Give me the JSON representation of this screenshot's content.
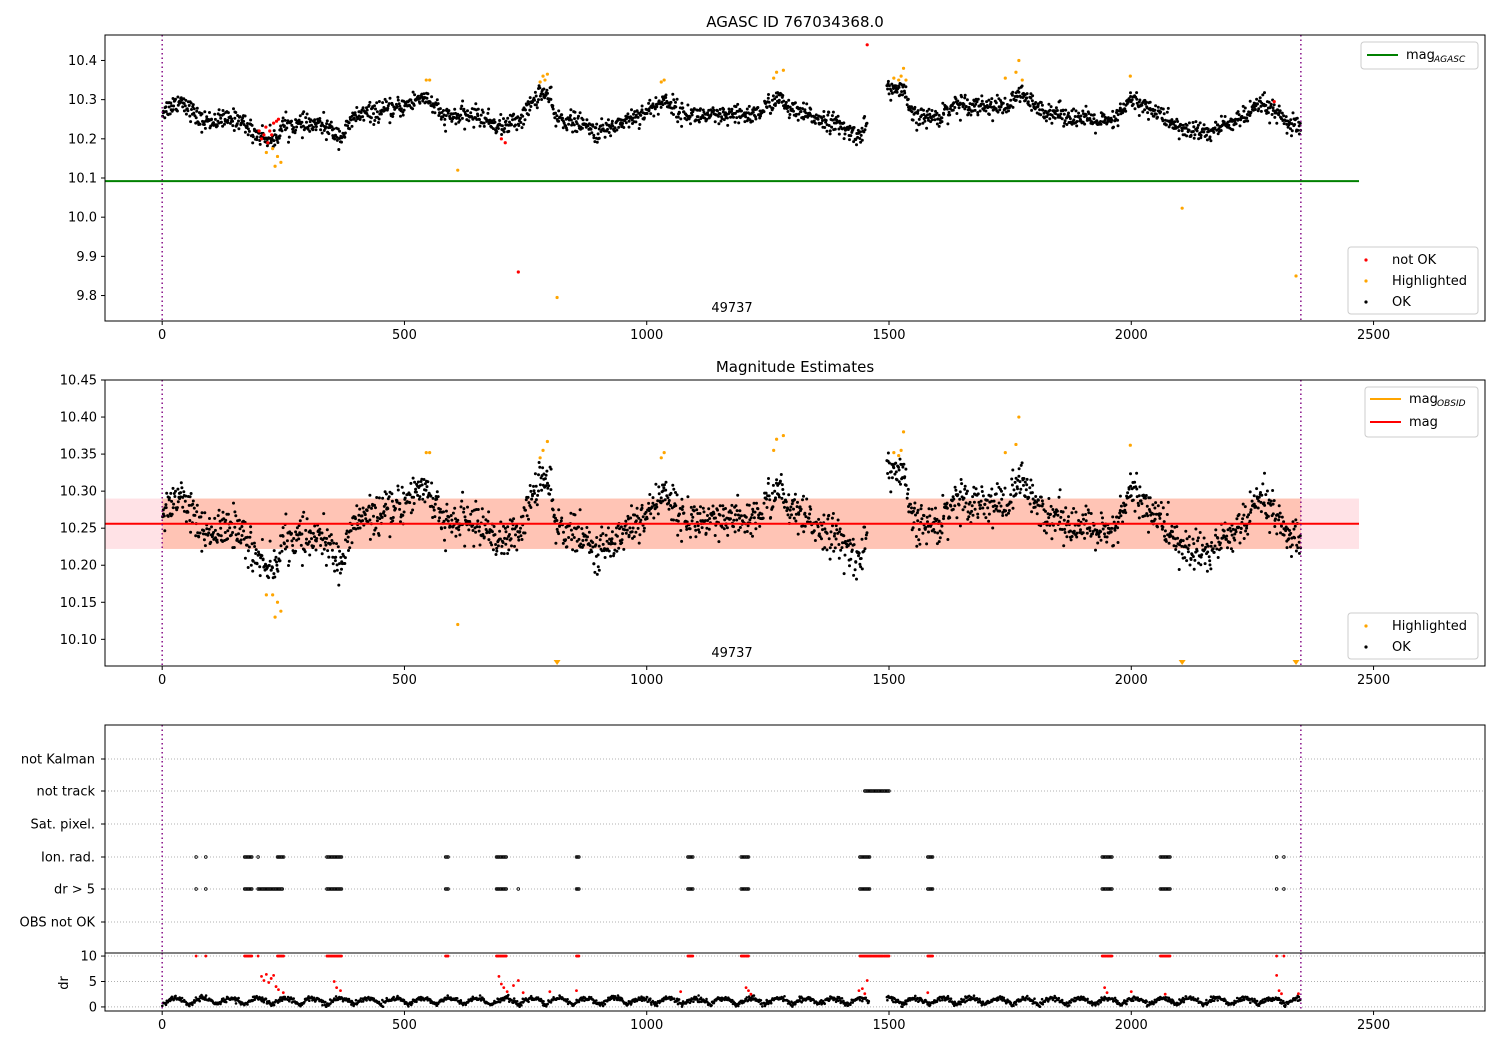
{
  "chart_data": [
    {
      "type": "scatter",
      "title": "AGASC ID 767034368.0",
      "xlabel": "",
      "ylabel": "",
      "xlim": [
        -118,
        2730
      ],
      "ylim": [
        9.735,
        10.465
      ],
      "x_ticks": [
        0,
        500,
        1000,
        1500,
        2000,
        2500
      ],
      "y_ticks": [
        9.8,
        9.9,
        10.0,
        10.1,
        10.2,
        10.3,
        10.4
      ],
      "annotation": "49737",
      "vlines": [
        0,
        2350
      ],
      "hline": {
        "name": "mag",
        "name_sub": "AGASC",
        "value": 10.092,
        "x_range": [
          -118,
          2470
        ],
        "color": "#008000"
      },
      "legend_lines": [
        {
          "label": "mag",
          "sub": "AGASC",
          "color": "#008000"
        }
      ],
      "legend_points": [
        {
          "label": "not OK",
          "color": "#ff0000"
        },
        {
          "label": "Highlighted",
          "color": "#ffa500"
        },
        {
          "label": "OK",
          "color": "#000000"
        }
      ],
      "legend_placement": "top-right / bottom-right",
      "grid": false,
      "series": [
        {
          "name": "not OK",
          "color": "#ff0000",
          "points": [
            [
              200,
              10.22
            ],
            [
              205,
              10.2
            ],
            [
              210,
              10.21
            ],
            [
              214,
              10.23
            ],
            [
              218,
              10.19
            ],
            [
              222,
              10.22
            ],
            [
              226,
              10.21
            ],
            [
              230,
              10.24
            ],
            [
              236,
              10.245
            ],
            [
              240,
              10.25
            ],
            [
              700,
              10.2
            ],
            [
              708,
              10.19
            ],
            [
              735,
              9.86
            ],
            [
              1455,
              10.44
            ],
            [
              2295,
              10.295
            ]
          ]
        },
        {
          "name": "Highlighted",
          "color": "#ffa500",
          "points": [
            [
              215,
              10.165
            ],
            [
              228,
              10.175
            ],
            [
              233,
              10.13
            ],
            [
              238,
              10.155
            ],
            [
              245,
              10.14
            ],
            [
              545,
              10.35
            ],
            [
              552,
              10.35
            ],
            [
              610,
              10.12
            ],
            [
              780,
              10.345
            ],
            [
              786,
              10.36
            ],
            [
              790,
              10.35
            ],
            [
              795,
              10.365
            ],
            [
              815,
              9.795
            ],
            [
              1030,
              10.345
            ],
            [
              1036,
              10.35
            ],
            [
              1262,
              10.355
            ],
            [
              1268,
              10.37
            ],
            [
              1282,
              10.375
            ],
            [
              1510,
              10.355
            ],
            [
              1520,
              10.35
            ],
            [
              1525,
              10.36
            ],
            [
              1530,
              10.38
            ],
            [
              1535,
              10.35
            ],
            [
              1740,
              10.355
            ],
            [
              1762,
              10.37
            ],
            [
              1768,
              10.4
            ],
            [
              1775,
              10.35
            ],
            [
              1998,
              10.36
            ],
            [
              2105,
              10.023
            ],
            [
              2340,
              9.85
            ]
          ]
        },
        {
          "name": "OK",
          "color": "#000000",
          "generator": {
            "n": 2100,
            "x_range": [
              0,
              2350
            ],
            "base": 10.255,
            "segments": [
              [
                0,
                10.27
              ],
              [
                40,
                10.3
              ],
              [
                80,
                10.245
              ],
              [
                160,
                10.25
              ],
              [
                190,
                10.215
              ],
              [
                230,
                10.195
              ],
              [
                250,
                10.235
              ],
              [
                330,
                10.235
              ],
              [
                370,
                10.205
              ],
              [
                400,
                10.26
              ],
              [
                480,
                10.275
              ],
              [
                510,
                10.29
              ],
              [
                540,
                10.31
              ],
              [
                560,
                10.285
              ],
              [
                580,
                10.255
              ],
              [
                650,
                10.26
              ],
              [
                700,
                10.23
              ],
              [
                740,
                10.25
              ],
              [
                780,
                10.32
              ],
              [
                800,
                10.305
              ],
              [
                810,
                10.255
              ],
              [
                860,
                10.24
              ],
              [
                900,
                10.215
              ],
              [
                960,
                10.25
              ],
              [
                1000,
                10.27
              ],
              [
                1040,
                10.3
              ],
              [
                1070,
                10.265
              ],
              [
                1150,
                10.255
              ],
              [
                1230,
                10.265
              ],
              [
                1270,
                10.305
              ],
              [
                1300,
                10.27
              ],
              [
                1380,
                10.245
              ],
              [
                1420,
                10.215
              ],
              [
                1440,
                10.21
              ],
              [
                1500,
                10.33
              ],
              [
                1530,
                10.32
              ],
              [
                1550,
                10.255
              ],
              [
                1600,
                10.255
              ],
              [
                1640,
                10.29
              ],
              [
                1700,
                10.285
              ],
              [
                1740,
                10.28
              ],
              [
                1775,
                10.315
              ],
              [
                1800,
                10.28
              ],
              [
                1900,
                10.25
              ],
              [
                1960,
                10.24
              ],
              [
                2000,
                10.3
              ],
              [
                2050,
                10.27
              ],
              [
                2100,
                10.225
              ],
              [
                2160,
                10.215
              ],
              [
                2200,
                10.24
              ],
              [
                2240,
                10.26
              ],
              [
                2270,
                10.29
              ],
              [
                2290,
                10.275
              ],
              [
                2320,
                10.24
              ],
              [
                2350,
                10.225
              ]
            ],
            "noise": 0.018
          }
        }
      ]
    },
    {
      "type": "scatter",
      "title": "Magnitude Estimates",
      "xlabel": "",
      "ylabel": "",
      "xlim": [
        -118,
        2730
      ],
      "ylim": [
        10.064,
        10.45
      ],
      "x_ticks": [
        0,
        500,
        1000,
        1500,
        2000,
        2500
      ],
      "y_ticks": [
        10.1,
        10.15,
        10.2,
        10.25,
        10.3,
        10.35,
        10.4,
        10.45
      ],
      "y_tick_labels": [
        "10.10",
        "10.15",
        "10.20",
        "10.25",
        "10.30",
        "10.35",
        "10.40",
        "10.45"
      ],
      "annotation": "49737",
      "vlines": [
        0,
        2350
      ],
      "mag_line": {
        "value": 10.256,
        "x_range": [
          -118,
          2470
        ],
        "color": "#ff0000"
      },
      "band_outer": {
        "low": 10.222,
        "high": 10.29,
        "x_range": [
          -118,
          2470
        ],
        "color": "#ffb6c1"
      },
      "band_inner": {
        "low": 10.222,
        "high": 10.29,
        "x_range": [
          0,
          2350
        ],
        "color": "#ffa07a"
      },
      "legend_lines": [
        {
          "label": "mag",
          "sub": "OBSID",
          "color": "#ffa500"
        },
        {
          "label": "mag",
          "sub": "",
          "color": "#ff0000"
        }
      ],
      "legend_points": [
        {
          "label": "Highlighted",
          "color": "#ffa500"
        },
        {
          "label": "OK",
          "color": "#000000"
        }
      ],
      "legend_placement": "top-right / bottom-right",
      "grid": false,
      "offscale_markers": [
        815,
        2105,
        2340
      ],
      "series": [
        {
          "name": "Highlighted",
          "color": "#ffa500",
          "points": [
            [
              215,
              10.16
            ],
            [
              228,
              10.16
            ],
            [
              233,
              10.13
            ],
            [
              238,
              10.15
            ],
            [
              245,
              10.138
            ],
            [
              545,
              10.352
            ],
            [
              552,
              10.352
            ],
            [
              610,
              10.12
            ],
            [
              780,
              10.345
            ],
            [
              786,
              10.355
            ],
            [
              795,
              10.367
            ],
            [
              1030,
              10.345
            ],
            [
              1036,
              10.352
            ],
            [
              1262,
              10.355
            ],
            [
              1268,
              10.37
            ],
            [
              1282,
              10.375
            ],
            [
              1510,
              10.352
            ],
            [
              1520,
              10.348
            ],
            [
              1525,
              10.355
            ],
            [
              1530,
              10.38
            ],
            [
              1740,
              10.352
            ],
            [
              1762,
              10.363
            ],
            [
              1768,
              10.4
            ],
            [
              1998,
              10.362
            ]
          ]
        },
        {
          "name": "OK",
          "color": "#000000",
          "generator": "same-as-panel-1"
        }
      ]
    },
    {
      "type": "scatter",
      "title": "",
      "xlabel": "",
      "ylabel": "",
      "xlim": [
        -118,
        2730
      ],
      "categories": [
        "not Kalman",
        "not track",
        "Sat. pixel.",
        "Ion. rad.",
        "dr > 5",
        "OBS not OK"
      ],
      "grid": true,
      "vlines": [
        0,
        2350
      ],
      "flag_clusters": {
        "not track": [
          [
            1450,
            1500
          ]
        ],
        "Ion. rad.": [
          [
            70,
            72
          ],
          [
            90,
            92
          ],
          [
            170,
            185
          ],
          [
            198,
            200
          ],
          [
            238,
            252
          ],
          [
            340,
            370
          ],
          [
            585,
            590
          ],
          [
            690,
            710
          ],
          [
            855,
            860
          ],
          [
            1085,
            1095
          ],
          [
            1195,
            1210
          ],
          [
            1440,
            1460
          ],
          [
            1580,
            1590
          ],
          [
            1940,
            1960
          ],
          [
            2060,
            2080
          ],
          [
            2300,
            2302
          ],
          [
            2315,
            2317
          ]
        ],
        "dr > 5": [
          [
            70,
            72
          ],
          [
            90,
            92
          ],
          [
            170,
            185
          ],
          [
            198,
            250
          ],
          [
            340,
            370
          ],
          [
            585,
            590
          ],
          [
            690,
            710
          ],
          [
            735,
            737
          ],
          [
            855,
            860
          ],
          [
            1085,
            1095
          ],
          [
            1195,
            1210
          ],
          [
            1440,
            1460
          ],
          [
            1580,
            1590
          ],
          [
            1940,
            1960
          ],
          [
            2060,
            2080
          ],
          [
            2300,
            2302
          ],
          [
            2315,
            2317
          ]
        ]
      }
    },
    {
      "type": "scatter",
      "title": "",
      "xlabel": "",
      "ylabel": "dr",
      "xlim": [
        -118,
        2730
      ],
      "ylim": [
        -0.8,
        10.6
      ],
      "y_ticks": [
        0,
        5,
        10
      ],
      "x_ticks": [
        0,
        500,
        1000,
        1500,
        2000,
        2500
      ],
      "grid": true,
      "vlines": [
        0,
        2350
      ],
      "red_at_ten": [
        [
          70,
          72
        ],
        [
          90,
          92
        ],
        [
          170,
          185
        ],
        [
          198,
          200
        ],
        [
          238,
          252
        ],
        [
          340,
          370
        ],
        [
          585,
          590
        ],
        [
          690,
          710
        ],
        [
          855,
          860
        ],
        [
          1085,
          1095
        ],
        [
          1195,
          1210
        ],
        [
          1440,
          1500
        ],
        [
          1580,
          1590
        ],
        [
          1940,
          1960
        ],
        [
          2060,
          2080
        ],
        [
          2300,
          2302
        ],
        [
          2315,
          2317
        ]
      ],
      "red_points": [
        [
          205,
          6.0
        ],
        [
          210,
          5.2
        ],
        [
          215,
          6.4
        ],
        [
          220,
          4.8
        ],
        [
          225,
          5.6
        ],
        [
          230,
          6.2
        ],
        [
          235,
          4.0
        ],
        [
          240,
          3.4
        ],
        [
          250,
          2.8
        ],
        [
          355,
          5.0
        ],
        [
          360,
          3.8
        ],
        [
          368,
          3.2
        ],
        [
          695,
          6.0
        ],
        [
          700,
          4.5
        ],
        [
          705,
          3.8
        ],
        [
          712,
          3.0
        ],
        [
          725,
          4.2
        ],
        [
          735,
          5.2
        ],
        [
          745,
          2.8
        ],
        [
          800,
          3.0
        ],
        [
          855,
          3.2
        ],
        [
          1070,
          3.0
        ],
        [
          1205,
          3.8
        ],
        [
          1210,
          3.2
        ],
        [
          1215,
          2.5
        ],
        [
          1438,
          3.2
        ],
        [
          1445,
          3.6
        ],
        [
          1455,
          5.2
        ],
        [
          1450,
          2.6
        ],
        [
          1580,
          2.8
        ],
        [
          1945,
          3.8
        ],
        [
          1950,
          2.8
        ],
        [
          2000,
          3.0
        ],
        [
          2070,
          2.5
        ],
        [
          2300,
          6.2
        ],
        [
          2305,
          3.2
        ],
        [
          2310,
          2.6
        ],
        [
          2345,
          2.6
        ]
      ],
      "black_base": 1.2
    }
  ]
}
